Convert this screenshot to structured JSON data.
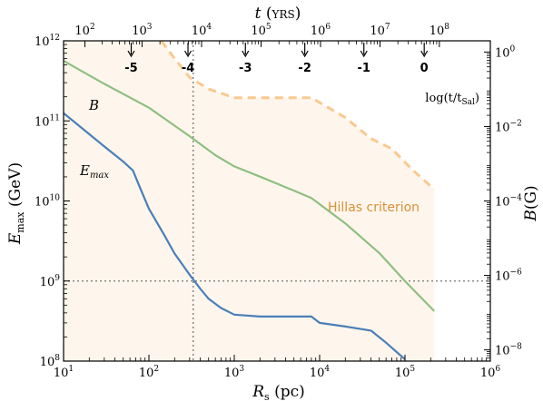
{
  "chart_data": {
    "type": "line",
    "x_axis": {
      "label": "R",
      "label_sub": "s",
      "label_unit": " (pc)",
      "scale": "log",
      "lim": [
        10,
        1000000
      ],
      "ticks": [
        {
          "v": 10,
          "base": "10",
          "exp": "1"
        },
        {
          "v": 100,
          "base": "10",
          "exp": "2"
        },
        {
          "v": 1000,
          "base": "10",
          "exp": "3"
        },
        {
          "v": 10000,
          "base": "10",
          "exp": "4"
        },
        {
          "v": 100000,
          "base": "10",
          "exp": "5"
        },
        {
          "v": 1000000,
          "base": "10",
          "exp": "6"
        }
      ]
    },
    "y_left": {
      "label": "E",
      "label_sub": "max",
      "label_unit": " (GeV)",
      "scale": "log",
      "lim": [
        100000000,
        1000000000000
      ],
      "ticks": [
        {
          "v": 100000000,
          "base": "10",
          "exp": "8"
        },
        {
          "v": 1000000000,
          "base": "10",
          "exp": "9"
        },
        {
          "v": 10000000000,
          "base": "10",
          "exp": "10"
        },
        {
          "v": 100000000000,
          "base": "10",
          "exp": "11"
        },
        {
          "v": 1000000000000,
          "base": "10",
          "exp": "12"
        }
      ]
    },
    "y_right": {
      "label": "B",
      "label_unit": "(G)",
      "scale": "log",
      "lim": [
        5e-09,
        2
      ],
      "ticks": [
        {
          "v": 1e-08,
          "base": "10",
          "exp": "−8"
        },
        {
          "v": 1e-06,
          "base": "10",
          "exp": "−6"
        },
        {
          "v": 0.0001,
          "base": "10",
          "exp": "−4"
        },
        {
          "v": 0.01,
          "base": "10",
          "exp": "−2"
        },
        {
          "v": 1,
          "base": "10",
          "exp": "0"
        }
      ]
    },
    "x_top": {
      "label": "t",
      "label_unit": " (yrs)",
      "scale": "log",
      "ticks": [
        {
          "at_rs": 17.8,
          "base": "10",
          "exp": "2"
        },
        {
          "at_rs": 83,
          "base": "10",
          "exp": "3"
        },
        {
          "at_rs": 414,
          "base": "10",
          "exp": "4"
        },
        {
          "at_rs": 2060,
          "base": "10",
          "exp": "5"
        },
        {
          "at_rs": 10240,
          "base": "10",
          "exp": "6"
        },
        {
          "at_rs": 51000,
          "base": "10",
          "exp": "7"
        },
        {
          "at_rs": 253000,
          "base": "10",
          "exp": "8"
        }
      ]
    },
    "log_t_markers": {
      "label": "log(t/t",
      "label_sub": "Sal",
      "label_end": ")",
      "items": [
        {
          "label": "-5",
          "at_rs": 62
        },
        {
          "label": "-4",
          "at_rs": 287
        },
        {
          "label": "-3",
          "at_rs": 1350
        },
        {
          "label": "-2",
          "at_rs": 6700
        },
        {
          "label": "-1",
          "at_rs": 33000
        },
        {
          "label": "0",
          "at_rs": 168000
        }
      ]
    },
    "series": [
      {
        "name": "E",
        "name_sub": "max",
        "axis": "left",
        "color": "#4a7fb8",
        "points": [
          [
            10,
            125000000000
          ],
          [
            30,
            48000000000
          ],
          [
            50,
            31000000000
          ],
          [
            65,
            24000000000
          ],
          [
            80,
            14000000000
          ],
          [
            100,
            8000000000
          ],
          [
            150,
            3800000000
          ],
          [
            200,
            2200000000
          ],
          [
            300,
            1200000000
          ],
          [
            400,
            800000000
          ],
          [
            500,
            600000000
          ],
          [
            700,
            460000000
          ],
          [
            1000,
            380000000
          ],
          [
            2000,
            360000000
          ],
          [
            4000,
            360000000
          ],
          [
            8000,
            360000000
          ],
          [
            10000,
            300000000
          ],
          [
            20000,
            270000000
          ],
          [
            40000,
            240000000
          ],
          [
            60000,
            170000000
          ],
          [
            100000,
            105000000
          ]
        ]
      },
      {
        "name": "B",
        "axis": "right",
        "color": "#8fbf80",
        "points": [
          [
            10,
            0.58
          ],
          [
            30,
            0.14
          ],
          [
            100,
            0.032
          ],
          [
            300,
            0.0055
          ],
          [
            600,
            0.0017
          ],
          [
            1000,
            0.00085
          ],
          [
            2000,
            0.00045
          ],
          [
            5000,
            0.00019
          ],
          [
            8000,
            0.00012
          ],
          [
            20000,
            2.5e-05
          ],
          [
            50000,
            4e-06
          ],
          [
            100000,
            7e-07
          ],
          [
            220000,
            1.1e-07
          ]
        ]
      },
      {
        "name": "Hillas criterion",
        "axis": "left",
        "color": "#f9c98f",
        "style": "dashed",
        "fill": "#fef6ec",
        "points": [
          [
            10,
            1000000000000
          ],
          [
            140,
            1000000000000
          ],
          [
            200,
            600000000000
          ],
          [
            300,
            350000000000
          ],
          [
            500,
            250000000000
          ],
          [
            1000,
            195000000000
          ],
          [
            2000,
            195000000000
          ],
          [
            5000,
            195000000000
          ],
          [
            8000,
            195000000000
          ],
          [
            20000,
            110000000000
          ],
          [
            40000,
            60000000000
          ],
          [
            70000,
            45000000000
          ],
          [
            120000,
            25000000000
          ],
          [
            220000,
            14000000000
          ]
        ]
      }
    ],
    "reference_lines": [
      {
        "orientation": "horizontal",
        "value": 1000000000
      },
      {
        "orientation": "vertical",
        "value": 330
      }
    ],
    "annotations": [
      {
        "text": "B",
        "style": "italic",
        "color": "#8fbf80"
      },
      {
        "text": "E",
        "sub": "max",
        "style": "italic",
        "color": "#4a7fb8"
      },
      {
        "text": "Hillas criterion",
        "color": "#d9903a"
      }
    ]
  }
}
